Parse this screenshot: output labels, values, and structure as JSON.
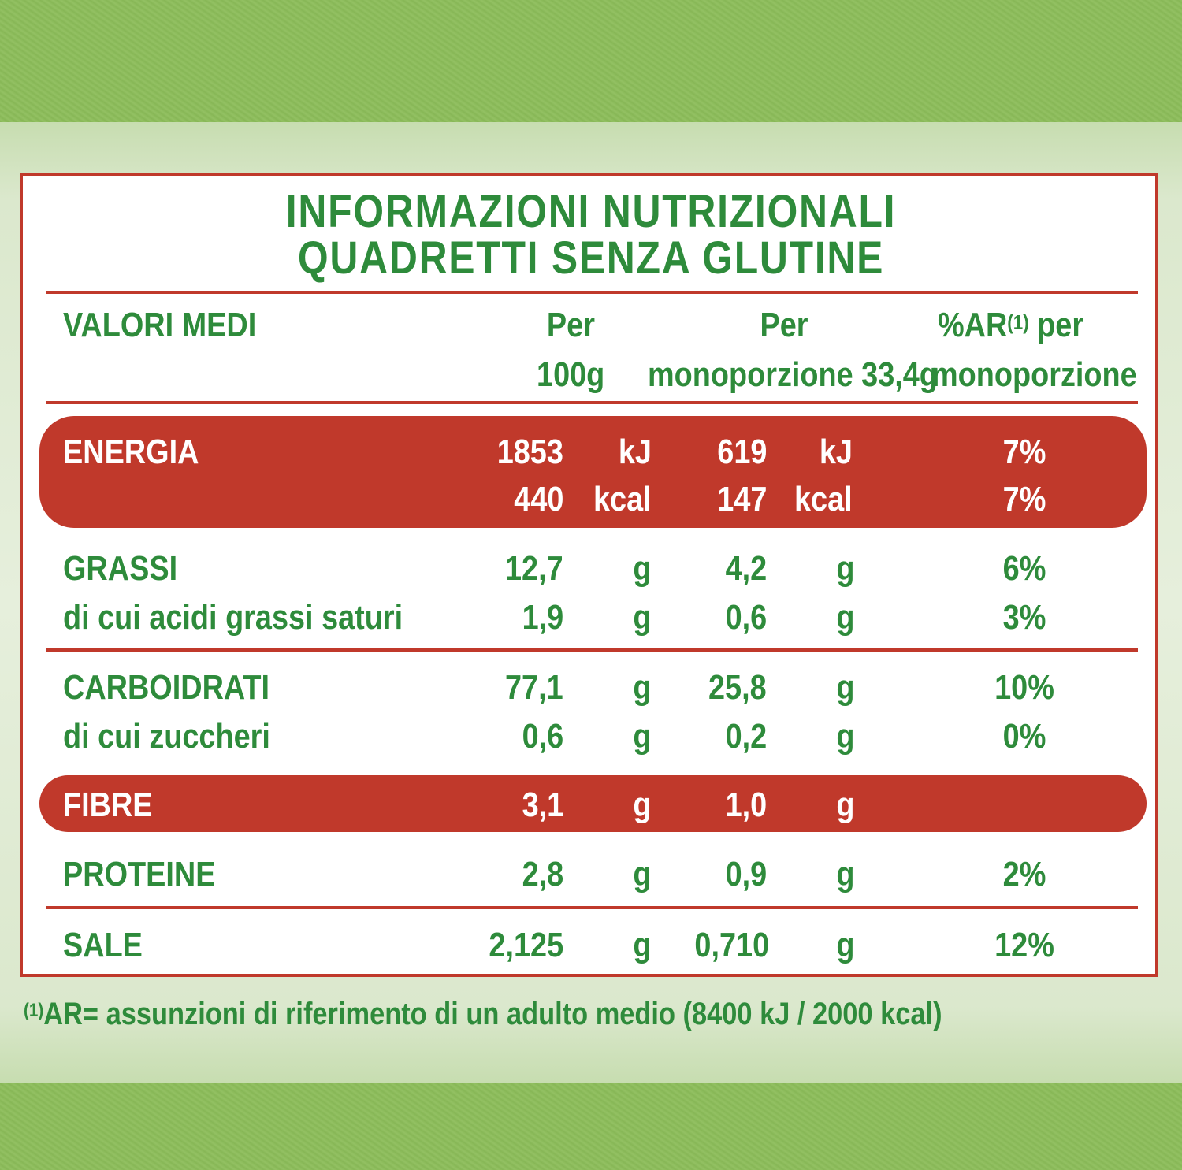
{
  "title_line1": "INFORMAZIONI NUTRIZIONALI",
  "title_line2": "QUADRETTI SENZA GLUTINE",
  "header": {
    "col0": "VALORI MEDI",
    "col1_line1": "Per",
    "col1_line2": "100g",
    "col2_line1": "Per",
    "col2_line2": "monoporzione 33,4g",
    "col3_prefix": "%AR",
    "col3_sup": "(1)",
    "col3_suffix": " per",
    "col3_line2": "monoporzione"
  },
  "rows": {
    "energia": {
      "label": "ENERGIA",
      "kj_100": "1853",
      "kj_unit": "kJ",
      "kj_por": "619",
      "kj_por_unit": "kJ",
      "kj_ar": "7%",
      "kcal_100": "440",
      "kcal_unit": "kcal",
      "kcal_por": "147",
      "kcal_por_unit": "kcal",
      "kcal_ar": "7%"
    },
    "grassi": {
      "label": "GRASSI",
      "v100": "12,7",
      "u1": "g",
      "vpor": "4,2",
      "u2": "g",
      "ar": "6%"
    },
    "saturi": {
      "label": "di cui acidi grassi saturi",
      "v100": "1,9",
      "u1": "g",
      "vpor": "0,6",
      "u2": "g",
      "ar": "3%"
    },
    "carboidrati": {
      "label": "CARBOIDRATI",
      "v100": "77,1",
      "u1": "g",
      "vpor": "25,8",
      "u2": "g",
      "ar": "10%"
    },
    "zuccheri": {
      "label": "di cui zuccheri",
      "v100": "0,6",
      "u1": "g",
      "vpor": "0,2",
      "u2": "g",
      "ar": "0%"
    },
    "fibre": {
      "label": "FIBRE",
      "v100": "3,1",
      "u1": "g",
      "vpor": "1,0",
      "u2": "g"
    },
    "proteine": {
      "label": "PROTEINE",
      "v100": "2,8",
      "u1": "g",
      "vpor": "0,9",
      "u2": "g",
      "ar": "2%"
    },
    "sale": {
      "label": "SALE",
      "v100": "2,125",
      "u1": "g",
      "vpor": "0,710",
      "u2": "g",
      "ar": "12%"
    }
  },
  "footnote_sup": "(1)",
  "footnote": "AR= assunzioni di riferimento di un adulto medio (8400 kJ / 2000 kcal)",
  "colors": {
    "green": "#2e8b3b",
    "red": "#c0392b",
    "white": "#ffffff"
  }
}
